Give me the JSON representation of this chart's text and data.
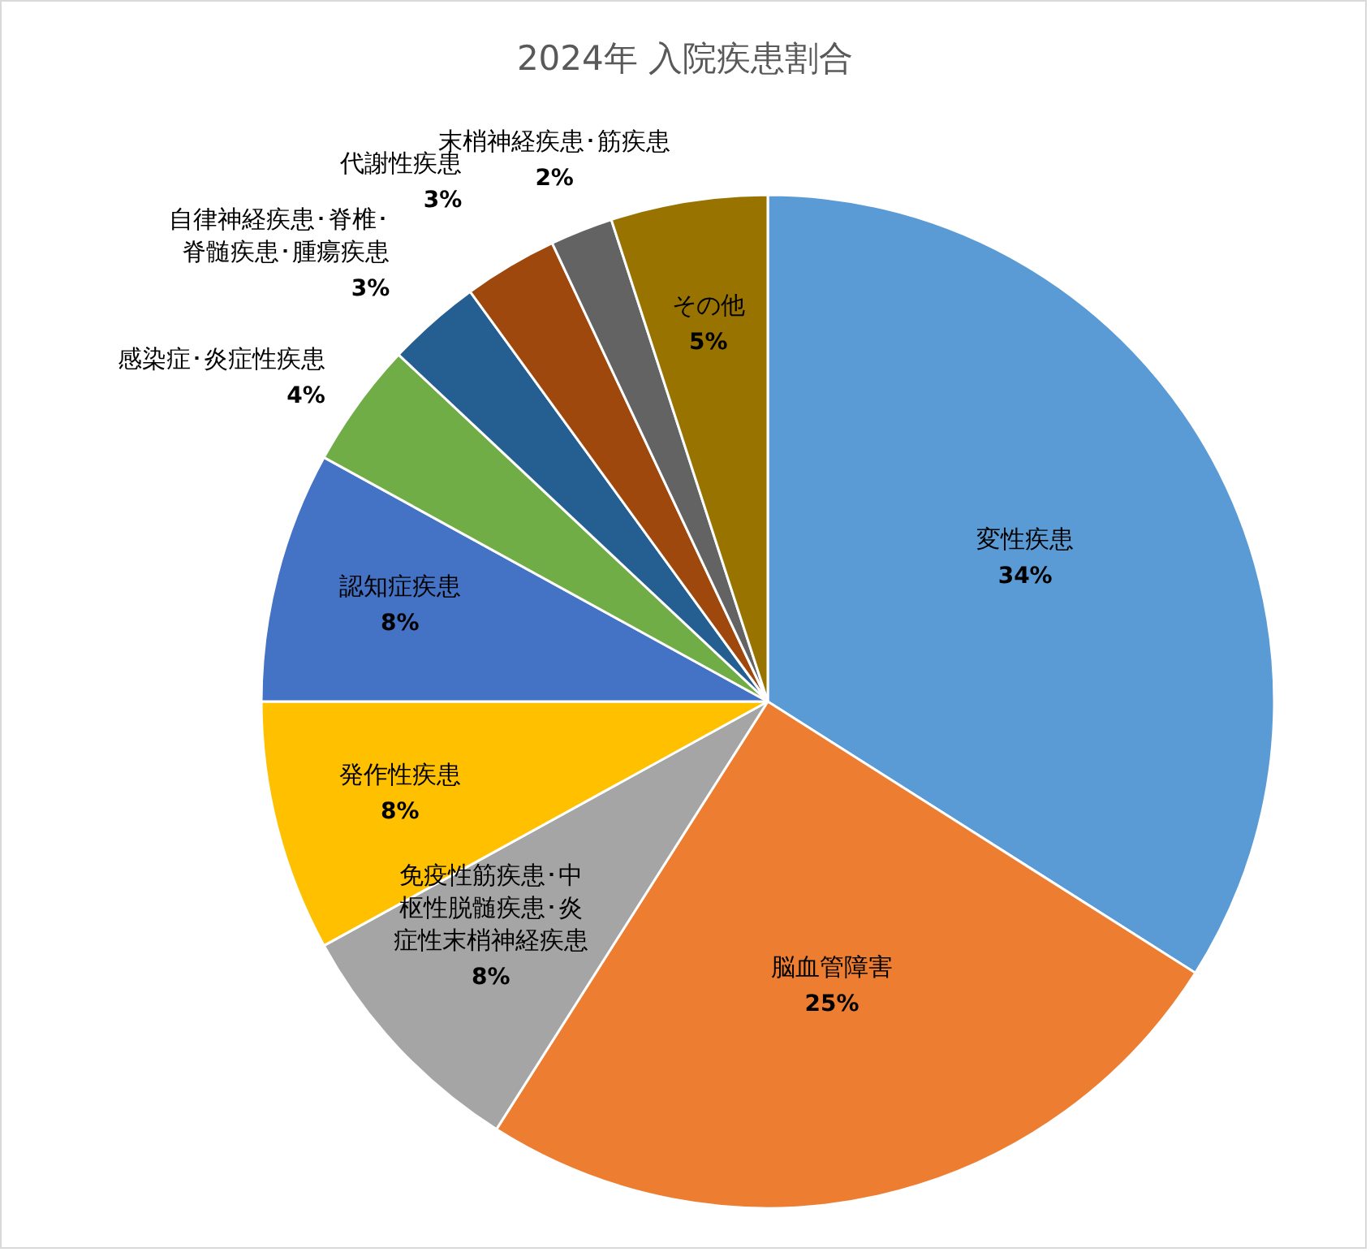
{
  "chart_data": {
    "type": "pie",
    "title": "2024年 入院疾患割合",
    "categories": [
      "変性疾患",
      "脳血管障害",
      "免疫性筋疾患･中枢性脱髄疾患･炎症性末梢神経疾患",
      "発作性疾患",
      "認知症疾患",
      "感染症･炎症性疾患",
      "自律神経疾患･脊椎･脊髄疾患･腫瘍疾患",
      "代謝性疾患",
      "末梢神経疾患･筋疾患",
      "その他"
    ],
    "values": [
      34,
      25,
      8,
      8,
      8,
      4,
      3,
      3,
      2,
      5
    ],
    "colors": [
      "#5b9bd5",
      "#ed7d31",
      "#a5a5a5",
      "#ffc000",
      "#4472c4",
      "#70ad47",
      "#255e91",
      "#9e480e",
      "#636363",
      "#997300"
    ],
    "value_labels": [
      "34%",
      "25%",
      "8%",
      "8%",
      "8%",
      "4%",
      "3%",
      "3%",
      "2%",
      "5%"
    ]
  }
}
